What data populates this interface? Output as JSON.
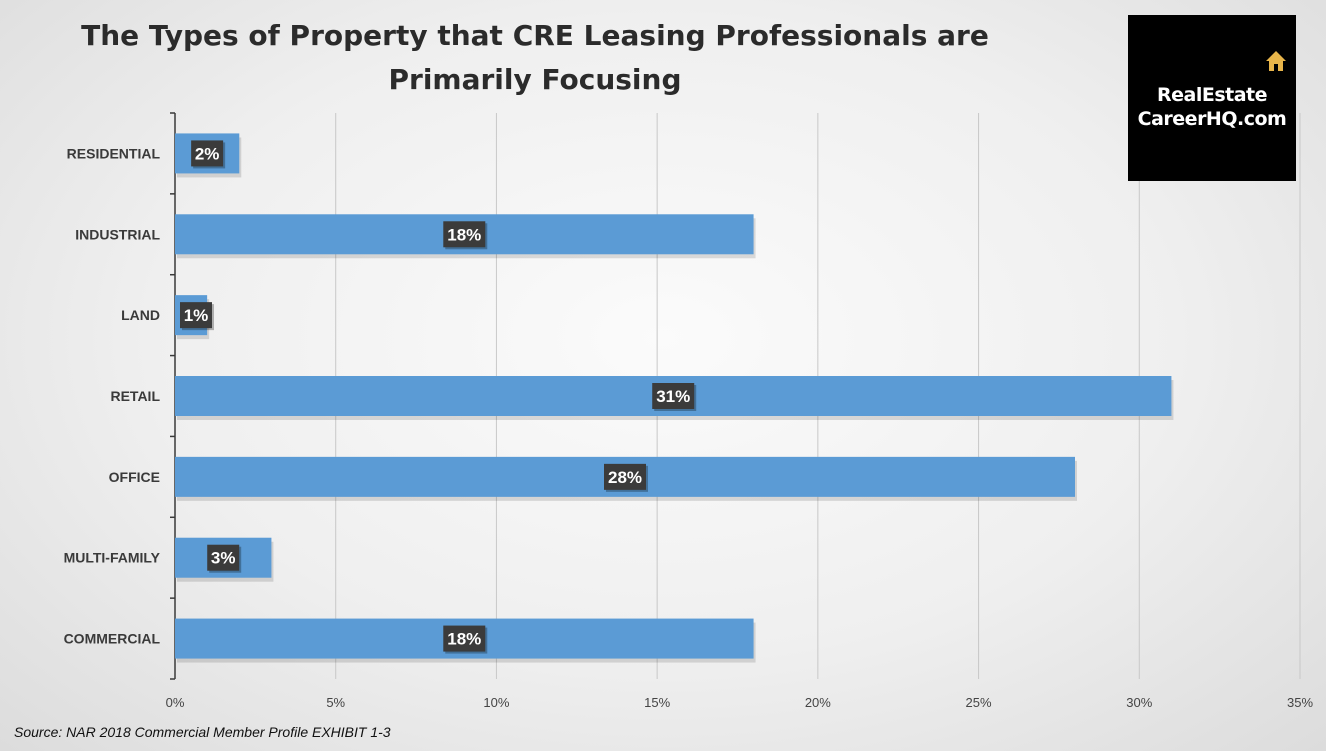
{
  "chart_data": {
    "type": "bar",
    "orientation": "horizontal",
    "title": "The Types of Property that CRE Leasing Professionals are Primarily Focusing",
    "title_lines": [
      "The Types of Property that CRE Leasing Professionals are",
      "Primarily Focusing"
    ],
    "categories": [
      "RESIDENTIAL",
      "INDUSTRIAL",
      "LAND",
      "RETAIL",
      "OFFICE",
      "MULTI-FAMILY",
      "COMMERCIAL"
    ],
    "values": [
      2,
      18,
      1,
      31,
      28,
      3,
      18
    ],
    "data_labels": [
      "2%",
      "18%",
      "1%",
      "31%",
      "28%",
      "3%",
      "18%"
    ],
    "xlim": [
      0,
      35
    ],
    "xticks": [
      0,
      5,
      10,
      15,
      20,
      25,
      30,
      35
    ],
    "xtick_labels": [
      "0%",
      "5%",
      "10%",
      "15%",
      "20%",
      "25%",
      "30%",
      "35%"
    ],
    "xlabel": "",
    "ylabel": "",
    "grid": "vertical",
    "legend": "none"
  },
  "logo": {
    "line1": "RealEstate",
    "line2": "CareerHQ.com",
    "icon": "house-icon"
  },
  "source": "Source: NAR 2018 Commercial Member Profile EXHIBIT 1-3",
  "colors": {
    "bar": "#5b9bd5",
    "data_label_bg": "#3b3b3b",
    "grid": "#c8c8c8",
    "axis": "#3a3a3a",
    "logo_icon": "#e8b54a"
  }
}
